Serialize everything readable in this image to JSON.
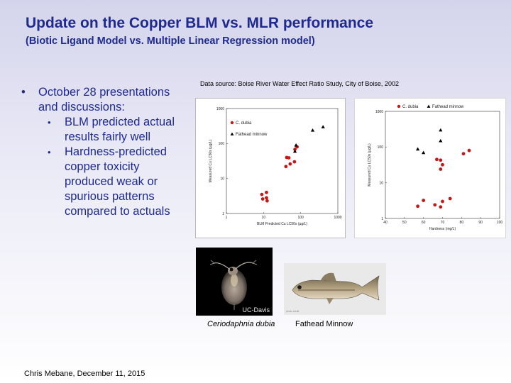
{
  "slide": {
    "title": "Update on the Copper BLM vs. MLR performance",
    "subtitle": "(Biotic Ligand Model vs. Multiple Linear Regression model)",
    "source": "Data source: Boise River Water Effect Ratio Study, City of Boise,  2002",
    "bullet1": "October 28 presentations and discussions:",
    "sub1": "BLM predicted actual results fairly well",
    "sub2": "Hardness-predicted copper toxicity produced weak or spurious patterns compared to actuals",
    "daphnia_credit": "UC-Davis",
    "caption_daphnia": "Ceriodaphnia dubia",
    "caption_fish": "Fathead Minnow",
    "fish_credit": "photo credit",
    "footer": "Chris Mebane, December 11, 2015",
    "colors": {
      "title": "#1f2a8f",
      "cdubia": "#c41818",
      "fathead": "#000000"
    }
  },
  "chart_data": [
    {
      "type": "scatter",
      "xlabel": "BLM Predicted Cu LC50s (µg/L)",
      "ylabel": "Measured Cu LC50s (µg/L)",
      "xscale": "log",
      "yscale": "log",
      "xlim": [
        1,
        1000
      ],
      "ylim": [
        1,
        1000
      ],
      "xticks": [
        "1",
        "10",
        "100",
        "1000"
      ],
      "yticks": [
        "1",
        "10",
        "100",
        "1000"
      ],
      "legend_position": "top-left",
      "series": [
        {
          "name": "C. dubia",
          "marker": "circle",
          "color": "#c41818",
          "points": [
            [
              9,
              3.5
            ],
            [
              12,
              4
            ],
            [
              12,
              2.8
            ],
            [
              9.5,
              2.6
            ],
            [
              12.5,
              2.3
            ],
            [
              42,
              40
            ],
            [
              52,
              26
            ],
            [
              48,
              39
            ],
            [
              68,
              30
            ],
            [
              40,
              22
            ],
            [
              70,
              68
            ],
            [
              80,
              80
            ]
          ]
        },
        {
          "name": "Fathead minnow",
          "marker": "triangle",
          "color": "#000000",
          "points": [
            [
              75,
              90
            ],
            [
              70,
              60
            ],
            [
              210,
              240
            ],
            [
              400,
              300
            ]
          ]
        }
      ]
    },
    {
      "type": "scatter",
      "xlabel": "Hardness (mg/L)",
      "ylabel": "Measured Cu LC50s (µg/L)",
      "xscale": "linear",
      "yscale": "log",
      "xlim": [
        40,
        100
      ],
      "ylim": [
        1,
        1000
      ],
      "xticks": [
        "40",
        "50",
        "60",
        "70",
        "80",
        "90",
        "100"
      ],
      "yticks": [
        "1",
        "10",
        "100",
        "1000"
      ],
      "legend_position": "top",
      "series": [
        {
          "name": "C. dubia",
          "marker": "circle",
          "color": "#c41818",
          "points": [
            [
              60,
              3.2
            ],
            [
              57,
              2.2
            ],
            [
              66,
              2.4
            ],
            [
              69,
              2.1
            ],
            [
              70,
              3
            ],
            [
              74,
              3.6
            ],
            [
              67,
              45
            ],
            [
              69,
              43
            ],
            [
              70,
              32
            ],
            [
              69,
              24
            ],
            [
              81,
              65
            ],
            [
              84,
              80
            ]
          ]
        },
        {
          "name": "Fathead minnow",
          "marker": "triangle",
          "color": "#000000",
          "points": [
            [
              69,
              300
            ],
            [
              69,
              150
            ],
            [
              57,
              88
            ],
            [
              60,
              70
            ]
          ]
        }
      ]
    }
  ]
}
